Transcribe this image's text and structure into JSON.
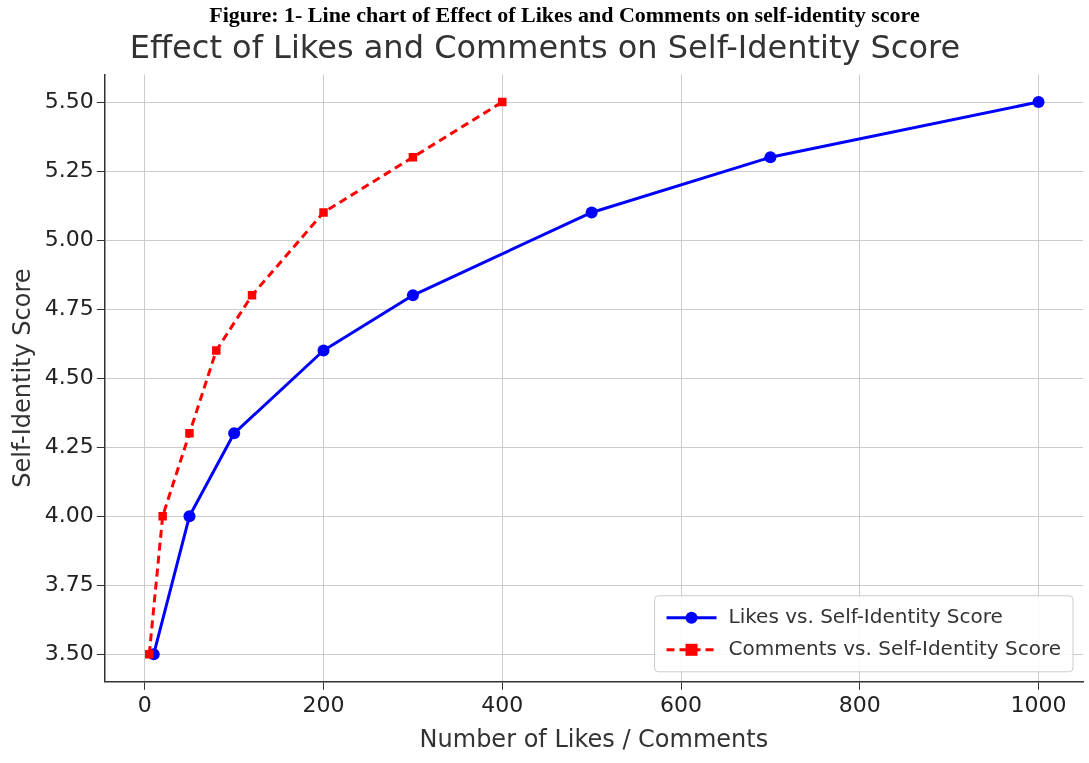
{
  "chart_data": {
    "type": "line",
    "title": "Effect of Likes and Comments on Self-Identity Score",
    "xlabel": "Number of Likes / Comments",
    "ylabel": "Self-Identity Score",
    "annotations": [
      "Figure: 1- Line chart of Effect of Likes and Comments on self-identity score"
    ],
    "series": [
      {
        "name": "Likes vs. Self-Identity Score",
        "color": "#0000ff",
        "marker": "circle",
        "line_style": "solid",
        "x": [
          10,
          50,
          100,
          200,
          300,
          500,
          700,
          1000
        ],
        "values": [
          3.5,
          4.0,
          4.3,
          4.6,
          4.8,
          5.1,
          5.3,
          5.5
        ]
      },
      {
        "name": "Comments vs. Self-Identity Score",
        "color": "#ff0000",
        "marker": "square",
        "line_style": "dashed",
        "x": [
          5,
          20,
          50,
          80,
          120,
          200,
          300,
          400
        ],
        "values": [
          3.5,
          4.0,
          4.3,
          4.6,
          4.8,
          5.1,
          5.3,
          5.5
        ]
      }
    ],
    "xlim": [
      -44.75,
      1049.75
    ],
    "xticks": [
      0,
      200,
      400,
      600,
      800,
      1000
    ],
    "ylim": [
      3.4,
      5.6
    ],
    "yticks": [
      {
        "value": 3.5,
        "label": "3.50"
      },
      {
        "value": 3.75,
        "label": "3.75"
      },
      {
        "value": 4.0,
        "label": "4.00"
      },
      {
        "value": 4.25,
        "label": "4.25"
      },
      {
        "value": 4.5,
        "label": "4.50"
      },
      {
        "value": 4.75,
        "label": "4.75"
      },
      {
        "value": 5.0,
        "label": "5.00"
      },
      {
        "value": 5.25,
        "label": "5.25"
      },
      {
        "value": 5.5,
        "label": "5.50"
      }
    ],
    "grid": true,
    "legend": "bottom right"
  }
}
